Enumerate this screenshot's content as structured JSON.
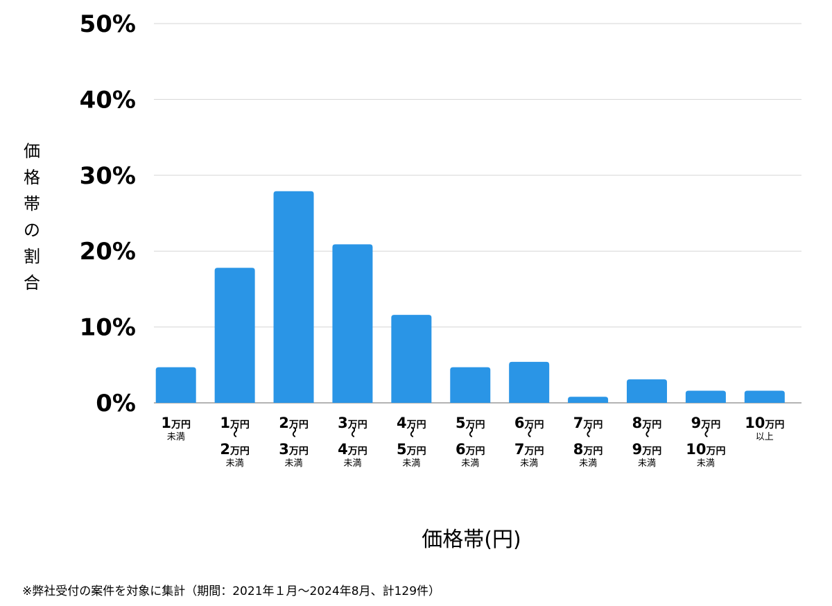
{
  "chart_data": {
    "type": "bar",
    "ylabel": "価格帯の割合",
    "xlabel": "価格帯(円)",
    "ylim": [
      0,
      50
    ],
    "yticks": [
      0,
      10,
      20,
      30,
      40,
      50
    ],
    "ytick_labels": [
      "0%",
      "10%",
      "20%",
      "30%",
      "40%",
      "50%"
    ],
    "grid": true,
    "bar_color": "#2a95e6",
    "categories": [
      {
        "lines": [
          {
            "num": "1",
            "unit": "万円"
          }
        ],
        "suffix": "未満"
      },
      {
        "lines": [
          {
            "num": "1",
            "unit": "万円"
          },
          {
            "num": "2",
            "unit": "万円"
          }
        ],
        "suffix": "未満"
      },
      {
        "lines": [
          {
            "num": "2",
            "unit": "万円"
          },
          {
            "num": "3",
            "unit": "万円"
          }
        ],
        "suffix": "未満"
      },
      {
        "lines": [
          {
            "num": "3",
            "unit": "万円"
          },
          {
            "num": "4",
            "unit": "万円"
          }
        ],
        "suffix": "未満"
      },
      {
        "lines": [
          {
            "num": "4",
            "unit": "万円"
          },
          {
            "num": "5",
            "unit": "万円"
          }
        ],
        "suffix": "未満"
      },
      {
        "lines": [
          {
            "num": "5",
            "unit": "万円"
          },
          {
            "num": "6",
            "unit": "万円"
          }
        ],
        "suffix": "未満"
      },
      {
        "lines": [
          {
            "num": "6",
            "unit": "万円"
          },
          {
            "num": "7",
            "unit": "万円"
          }
        ],
        "suffix": "未満"
      },
      {
        "lines": [
          {
            "num": "7",
            "unit": "万円"
          },
          {
            "num": "8",
            "unit": "万円"
          }
        ],
        "suffix": "未満"
      },
      {
        "lines": [
          {
            "num": "8",
            "unit": "万円"
          },
          {
            "num": "9",
            "unit": "万円"
          }
        ],
        "suffix": "未満"
      },
      {
        "lines": [
          {
            "num": "9",
            "unit": "万円"
          },
          {
            "num": "10",
            "unit": "万円"
          }
        ],
        "suffix": "未満"
      },
      {
        "lines": [
          {
            "num": "10",
            "unit": "万円"
          }
        ],
        "suffix": "以上"
      }
    ],
    "range_separator": "〜",
    "values": [
      4.7,
      17.8,
      27.9,
      20.9,
      11.6,
      4.7,
      5.4,
      0.8,
      3.1,
      1.6,
      1.6
    ]
  },
  "footnote": "※弊社受付の案件を対象に集計（期間：2021年１月〜2024年8月、計129件）"
}
